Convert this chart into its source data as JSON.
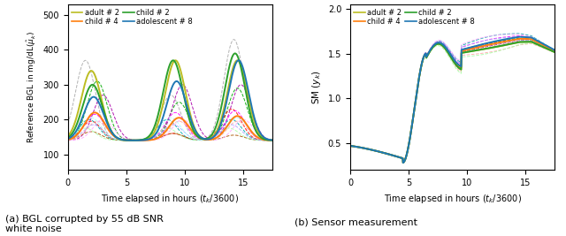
{
  "fig_width": 6.4,
  "fig_height": 2.67,
  "dpi": 100,
  "left_ylabel": "Reference BGL in mg/dL($\\hat{\\mu}_k$)",
  "right_ylabel": "SM ($y_k$)",
  "xlabel_left": "Time elapsed in hours ($t_k$/3600)",
  "xlabel_right": "Time elapsed in hours ($t_k$/3600)",
  "left_ylim": [
    55,
    530
  ],
  "right_ylim": [
    0.2,
    2.05
  ],
  "left_yticks": [
    100,
    200,
    300,
    400,
    500
  ],
  "right_yticks": [
    0.5,
    1.0,
    1.5,
    2.0
  ],
  "xticks": [
    0,
    5,
    10,
    15
  ],
  "legend_labels": [
    "adult # 2",
    "child # 4",
    "child # 2",
    "adolescent # 8"
  ],
  "legend_colors": [
    "#bcbd22",
    "#ff7f0e",
    "#2ca02c",
    "#1f77b4"
  ],
  "caption_left": "(a) BGL corrupted by 55 dB SNR\nwhite noise",
  "caption_right": "(b) Sensor measurement"
}
